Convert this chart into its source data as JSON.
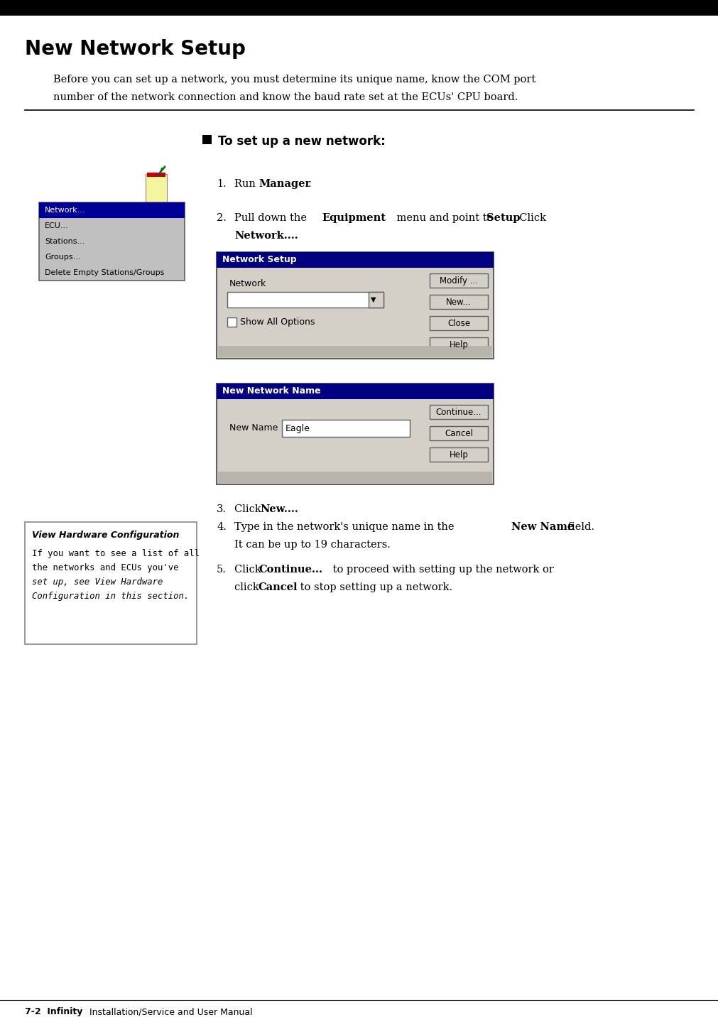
{
  "page_title": "New Network Setup",
  "header_bar_color": "#000000",
  "bg_color": "#ffffff",
  "intro_line1": "Before you can set up a network, you must determine its unique name, know the COM port",
  "intro_line2": "number of the network connection and know the baud rate set at the ECUs' CPU board.",
  "section_header": "To set up a new network:",
  "menu_items": [
    "Network...",
    "ECU...",
    "Stations...",
    "Groups...",
    "Delete Empty Stations/Groups"
  ],
  "menu_highlight_color": "#000099",
  "menu_bg_color": "#c0c0c0",
  "dialog1_title": "Network Setup",
  "dialog1_title_bg": "#000080",
  "dialog1_bg": "#d4d0c8",
  "dialog1_label": "Network",
  "dialog1_checkbox_label": "Show All Options",
  "dialog1_buttons": [
    "Modify ...",
    "New...",
    "Close",
    "Help"
  ],
  "dialog2_title": "New Network Name",
  "dialog2_title_bg": "#000080",
  "dialog2_bg": "#d4d0c8",
  "dialog2_label": "New Name",
  "dialog2_field_value": "Eagle",
  "dialog2_buttons": [
    "Continue...",
    "Cancel",
    "Help"
  ],
  "sidebar_title": "View Hardware Configuration",
  "sidebar_line1": "If you want to see a list of all",
  "sidebar_line2": "the networks and ECUs you've",
  "sidebar_line3": "set up, see View Hardware",
  "sidebar_line4": "Configuration in this section.",
  "footer_bold": "7-2  Infinity",
  "footer_normal": " Installation/Service and User Manual"
}
